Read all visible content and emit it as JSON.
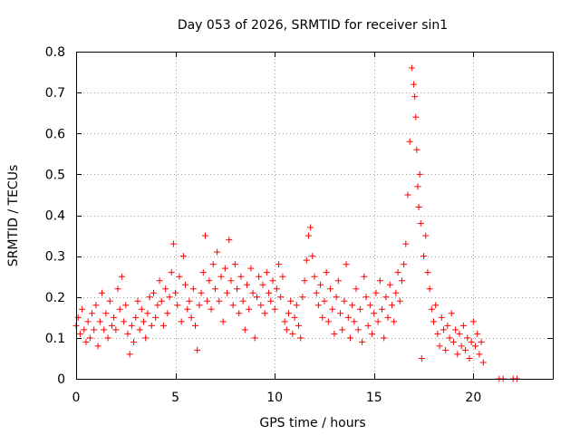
{
  "chart_data": {
    "type": "scatter",
    "title": "Day 053 of 2026, SRMTID for receiver sin1",
    "xlabel": "GPS time / hours",
    "ylabel": "SRMTID / TECUs",
    "xlim": [
      0,
      24
    ],
    "ylim": [
      0,
      0.8
    ],
    "xticks": [
      0,
      5,
      10,
      15,
      20
    ],
    "yticks": [
      0,
      0.1,
      0.2,
      0.3,
      0.4,
      0.5,
      0.6,
      0.7,
      0.8
    ],
    "xtick_labels": [
      "0",
      "5",
      "10",
      "15",
      "20"
    ],
    "ytick_labels": [
      "0",
      "0.1",
      "0.2",
      "0.3",
      "0.4",
      "0.5",
      "0.6",
      "0.7",
      "0.8"
    ],
    "grid": true,
    "marker": "+",
    "marker_color": "#ff0000",
    "series": [
      {
        "name": "sin1",
        "points": [
          [
            0.0,
            0.13
          ],
          [
            0.1,
            0.15
          ],
          [
            0.2,
            0.11
          ],
          [
            0.3,
            0.17
          ],
          [
            0.4,
            0.12
          ],
          [
            0.5,
            0.09
          ],
          [
            0.6,
            0.14
          ],
          [
            0.7,
            0.1
          ],
          [
            0.8,
            0.16
          ],
          [
            0.9,
            0.12
          ],
          [
            1.0,
            0.18
          ],
          [
            1.1,
            0.08
          ],
          [
            1.2,
            0.14
          ],
          [
            1.3,
            0.21
          ],
          [
            1.4,
            0.12
          ],
          [
            1.5,
            0.16
          ],
          [
            1.6,
            0.1
          ],
          [
            1.7,
            0.19
          ],
          [
            1.8,
            0.13
          ],
          [
            1.9,
            0.15
          ],
          [
            2.0,
            0.12
          ],
          [
            2.1,
            0.22
          ],
          [
            2.2,
            0.17
          ],
          [
            2.3,
            0.25
          ],
          [
            2.4,
            0.14
          ],
          [
            2.5,
            0.18
          ],
          [
            2.6,
            0.11
          ],
          [
            2.7,
            0.06
          ],
          [
            2.8,
            0.13
          ],
          [
            2.9,
            0.09
          ],
          [
            3.0,
            0.15
          ],
          [
            3.1,
            0.19
          ],
          [
            3.2,
            0.12
          ],
          [
            3.3,
            0.17
          ],
          [
            3.4,
            0.14
          ],
          [
            3.5,
            0.1
          ],
          [
            3.6,
            0.16
          ],
          [
            3.7,
            0.2
          ],
          [
            3.8,
            0.13
          ],
          [
            3.9,
            0.21
          ],
          [
            4.0,
            0.15
          ],
          [
            4.1,
            0.18
          ],
          [
            4.2,
            0.24
          ],
          [
            4.3,
            0.19
          ],
          [
            4.4,
            0.13
          ],
          [
            4.5,
            0.22
          ],
          [
            4.6,
            0.16
          ],
          [
            4.7,
            0.2
          ],
          [
            4.8,
            0.26
          ],
          [
            4.9,
            0.33
          ],
          [
            5.0,
            0.21
          ],
          [
            5.1,
            0.18
          ],
          [
            5.2,
            0.25
          ],
          [
            5.3,
            0.14
          ],
          [
            5.4,
            0.3
          ],
          [
            5.5,
            0.23
          ],
          [
            5.6,
            0.17
          ],
          [
            5.7,
            0.19
          ],
          [
            5.8,
            0.15
          ],
          [
            5.9,
            0.22
          ],
          [
            6.0,
            0.13
          ],
          [
            6.1,
            0.07
          ],
          [
            6.2,
            0.18
          ],
          [
            6.3,
            0.21
          ],
          [
            6.4,
            0.26
          ],
          [
            6.5,
            0.35
          ],
          [
            6.6,
            0.19
          ],
          [
            6.7,
            0.24
          ],
          [
            6.8,
            0.17
          ],
          [
            6.9,
            0.28
          ],
          [
            7.0,
            0.22
          ],
          [
            7.1,
            0.31
          ],
          [
            7.2,
            0.19
          ],
          [
            7.3,
            0.25
          ],
          [
            7.4,
            0.14
          ],
          [
            7.5,
            0.27
          ],
          [
            7.6,
            0.21
          ],
          [
            7.7,
            0.34
          ],
          [
            7.8,
            0.24
          ],
          [
            7.9,
            0.18
          ],
          [
            8.0,
            0.28
          ],
          [
            8.1,
            0.22
          ],
          [
            8.2,
            0.16
          ],
          [
            8.3,
            0.25
          ],
          [
            8.4,
            0.19
          ],
          [
            8.5,
            0.12
          ],
          [
            8.6,
            0.23
          ],
          [
            8.7,
            0.17
          ],
          [
            8.8,
            0.27
          ],
          [
            8.9,
            0.21
          ],
          [
            9.0,
            0.1
          ],
          [
            9.1,
            0.2
          ],
          [
            9.2,
            0.25
          ],
          [
            9.3,
            0.18
          ],
          [
            9.4,
            0.23
          ],
          [
            9.5,
            0.16
          ],
          [
            9.6,
            0.26
          ],
          [
            9.7,
            0.21
          ],
          [
            9.8,
            0.19
          ],
          [
            9.9,
            0.24
          ],
          [
            10.0,
            0.17
          ],
          [
            10.1,
            0.22
          ],
          [
            10.2,
            0.28
          ],
          [
            10.3,
            0.2
          ],
          [
            10.4,
            0.25
          ],
          [
            10.5,
            0.14
          ],
          [
            10.6,
            0.12
          ],
          [
            10.7,
            0.16
          ],
          [
            10.8,
            0.19
          ],
          [
            10.9,
            0.11
          ],
          [
            11.0,
            0.15
          ],
          [
            11.1,
            0.18
          ],
          [
            11.2,
            0.13
          ],
          [
            11.3,
            0.1
          ],
          [
            11.4,
            0.2
          ],
          [
            11.5,
            0.24
          ],
          [
            11.6,
            0.29
          ],
          [
            11.7,
            0.35
          ],
          [
            11.8,
            0.37
          ],
          [
            11.9,
            0.3
          ],
          [
            12.0,
            0.25
          ],
          [
            12.1,
            0.21
          ],
          [
            12.2,
            0.18
          ],
          [
            12.3,
            0.23
          ],
          [
            12.4,
            0.15
          ],
          [
            12.5,
            0.19
          ],
          [
            12.6,
            0.26
          ],
          [
            12.7,
            0.14
          ],
          [
            12.8,
            0.22
          ],
          [
            12.9,
            0.17
          ],
          [
            13.0,
            0.11
          ],
          [
            13.1,
            0.2
          ],
          [
            13.2,
            0.24
          ],
          [
            13.3,
            0.16
          ],
          [
            13.4,
            0.12
          ],
          [
            13.5,
            0.19
          ],
          [
            13.6,
            0.28
          ],
          [
            13.7,
            0.15
          ],
          [
            13.8,
            0.1
          ],
          [
            13.9,
            0.18
          ],
          [
            14.0,
            0.14
          ],
          [
            14.1,
            0.22
          ],
          [
            14.2,
            0.12
          ],
          [
            14.3,
            0.17
          ],
          [
            14.4,
            0.09
          ],
          [
            14.5,
            0.25
          ],
          [
            14.6,
            0.2
          ],
          [
            14.7,
            0.13
          ],
          [
            14.8,
            0.18
          ],
          [
            14.9,
            0.11
          ],
          [
            15.0,
            0.16
          ],
          [
            15.1,
            0.21
          ],
          [
            15.2,
            0.14
          ],
          [
            15.3,
            0.24
          ],
          [
            15.4,
            0.17
          ],
          [
            15.5,
            0.1
          ],
          [
            15.6,
            0.2
          ],
          [
            15.7,
            0.15
          ],
          [
            15.8,
            0.23
          ],
          [
            15.9,
            0.18
          ],
          [
            16.0,
            0.14
          ],
          [
            16.1,
            0.21
          ],
          [
            16.2,
            0.26
          ],
          [
            16.3,
            0.19
          ],
          [
            16.4,
            0.24
          ],
          [
            16.5,
            0.28
          ],
          [
            16.6,
            0.33
          ],
          [
            16.7,
            0.45
          ],
          [
            16.8,
            0.58
          ],
          [
            16.9,
            0.76
          ],
          [
            17.0,
            0.72
          ],
          [
            17.05,
            0.69
          ],
          [
            17.1,
            0.64
          ],
          [
            17.15,
            0.56
          ],
          [
            17.2,
            0.47
          ],
          [
            17.25,
            0.42
          ],
          [
            17.3,
            0.5
          ],
          [
            17.35,
            0.38
          ],
          [
            17.4,
            0.05
          ],
          [
            17.5,
            0.3
          ],
          [
            17.6,
            0.35
          ],
          [
            17.7,
            0.26
          ],
          [
            17.8,
            0.22
          ],
          [
            17.9,
            0.17
          ],
          [
            18.0,
            0.14
          ],
          [
            18.1,
            0.18
          ],
          [
            18.2,
            0.11
          ],
          [
            18.3,
            0.08
          ],
          [
            18.4,
            0.15
          ],
          [
            18.5,
            0.12
          ],
          [
            18.6,
            0.07
          ],
          [
            18.7,
            0.13
          ],
          [
            18.8,
            0.1
          ],
          [
            18.9,
            0.16
          ],
          [
            19.0,
            0.09
          ],
          [
            19.1,
            0.12
          ],
          [
            19.2,
            0.06
          ],
          [
            19.3,
            0.11
          ],
          [
            19.4,
            0.08
          ],
          [
            19.5,
            0.13
          ],
          [
            19.6,
            0.07
          ],
          [
            19.7,
            0.1
          ],
          [
            19.8,
            0.05
          ],
          [
            19.9,
            0.09
          ],
          [
            20.0,
            0.14
          ],
          [
            20.1,
            0.08
          ],
          [
            20.2,
            0.11
          ],
          [
            20.3,
            0.06
          ],
          [
            20.4,
            0.09
          ],
          [
            20.5,
            0.04
          ],
          [
            21.3,
            0.0
          ],
          [
            21.5,
            0.0
          ],
          [
            22.0,
            0.0
          ],
          [
            22.2,
            0.0
          ]
        ]
      }
    ]
  }
}
